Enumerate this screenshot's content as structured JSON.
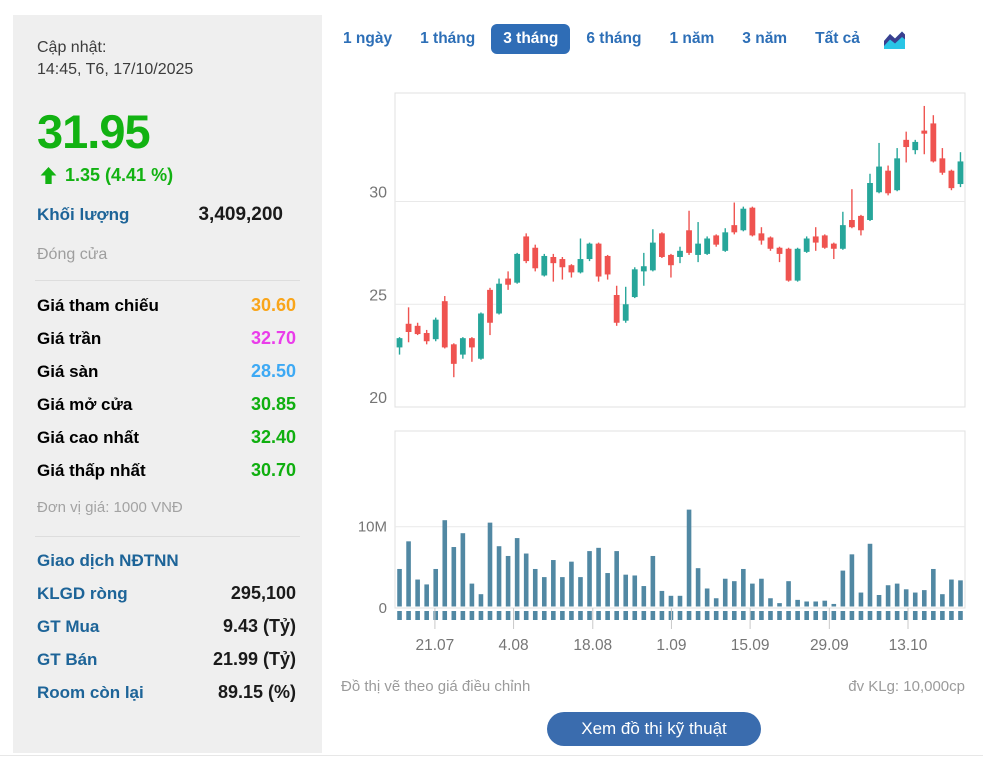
{
  "sidebar": {
    "updated_label": "Cập nhật:",
    "updated_value": "14:45, T6, 17/10/2025",
    "price": "31.95",
    "price_style": "color:#12b212",
    "change": "1.35 (4.41 %)",
    "change_style": "color:#12b212",
    "volume_label": "Khối lượng",
    "volume_value": "3,409,200",
    "session_status": "Đóng cửa",
    "price_rows": [
      {
        "label": "Giá tham chiếu",
        "value": "30.60",
        "style": "color:#f9a51a"
      },
      {
        "label": "Giá trần",
        "value": "32.70",
        "style": "color:#ea3cea"
      },
      {
        "label": "Giá sàn",
        "value": "28.50",
        "style": "color:#3da9f4"
      },
      {
        "label": "Giá mở cửa",
        "value": "30.85",
        "style": "color:#0faf0f"
      },
      {
        "label": "Giá cao nhất",
        "value": "32.40",
        "style": "color:#0faf0f"
      },
      {
        "label": "Giá thấp nhất",
        "value": "30.70",
        "style": "color:#0faf0f"
      }
    ],
    "unit_note": "Đơn vị giá: 1000 VNĐ",
    "foreign_header": "Giao dịch NĐTNN",
    "foreign_rows": [
      {
        "label": "KLGD ròng",
        "value": "295,100"
      },
      {
        "label": "GT Mua",
        "value": "9.43 (Tỷ)"
      },
      {
        "label": "GT Bán",
        "value": "21.99 (Tỷ)"
      },
      {
        "label": "Room còn lại",
        "value": "89.15 (%)"
      }
    ]
  },
  "tabs": {
    "items": [
      {
        "label": "1 ngày",
        "active": false
      },
      {
        "label": "1 tháng",
        "active": false
      },
      {
        "label": "3 tháng",
        "active": true
      },
      {
        "label": "6 tháng",
        "active": false
      },
      {
        "label": "1 năm",
        "active": false
      },
      {
        "label": "3 năm",
        "active": false
      },
      {
        "label": "Tất cả",
        "active": false
      }
    ],
    "active": "3 tháng"
  },
  "footer": {
    "left_note": "Đồ thị vẽ theo giá điều chỉnh",
    "right_note": "đv KLg: 10,000cp",
    "button_label": "Xem đồ thị kỹ thuật"
  },
  "colors": {
    "up": "#26a69a",
    "down": "#ef5350",
    "volume_bar": "#5188a3",
    "grid": "#e9e9e9",
    "plot_border": "#e0e0e0",
    "axis_text": "#757575",
    "accent_blue": "#2d6fb7",
    "price_green": "#12b212",
    "sidebar_label_blue": "#1d6498"
  },
  "chart_data": {
    "type": "candlestick+volume",
    "title": "",
    "price_axis": {
      "min": 20,
      "max": 35.28,
      "tick_labels": [
        "30",
        "25",
        "20"
      ],
      "tick_values": [
        30,
        25,
        20
      ],
      "grid": true
    },
    "volume_axis": {
      "max_millions": 21.8,
      "tick_labels": [
        "10M",
        "0"
      ],
      "tick_values_m": [
        10,
        0
      ]
    },
    "x_ticks": {
      "labels": [
        "21.07",
        "4.08",
        "18.08",
        "1.09",
        "15.09",
        "29.09",
        "13.10"
      ],
      "fracs": [
        0.07,
        0.208,
        0.347,
        0.485,
        0.623,
        0.762,
        0.9
      ]
    },
    "candles_ohlc": [
      [
        22.9,
        23.4,
        22.55,
        23.35
      ],
      [
        24.05,
        24.85,
        23.15,
        23.65
      ],
      [
        23.95,
        24.1,
        23.5,
        23.55
      ],
      [
        23.6,
        23.75,
        23.05,
        23.2
      ],
      [
        23.3,
        24.35,
        23.2,
        24.25
      ],
      [
        25.15,
        25.4,
        22.85,
        22.9
      ],
      [
        23.05,
        23.1,
        21.45,
        22.1
      ],
      [
        22.55,
        23.4,
        22.35,
        23.35
      ],
      [
        23.35,
        23.4,
        22.2,
        22.9
      ],
      [
        22.35,
        24.6,
        22.3,
        24.55
      ],
      [
        25.7,
        25.8,
        23.5,
        24.1
      ],
      [
        24.55,
        26.25,
        24.5,
        26.0
      ],
      [
        26.25,
        26.6,
        25.7,
        25.95
      ],
      [
        26.05,
        27.5,
        26.0,
        27.45
      ],
      [
        28.3,
        28.45,
        27.0,
        27.1
      ],
      [
        27.75,
        27.9,
        26.6,
        26.75
      ],
      [
        26.4,
        27.45,
        26.35,
        27.35
      ],
      [
        27.3,
        27.45,
        26.1,
        27.0
      ],
      [
        27.2,
        27.3,
        26.2,
        26.8
      ],
      [
        26.9,
        26.95,
        26.3,
        26.55
      ],
      [
        26.55,
        28.2,
        26.5,
        27.2
      ],
      [
        27.2,
        28.0,
        27.1,
        27.95
      ],
      [
        27.95,
        28.0,
        26.1,
        26.35
      ],
      [
        27.35,
        27.4,
        26.2,
        26.45
      ],
      [
        25.45,
        25.9,
        23.95,
        24.1
      ],
      [
        24.2,
        25.85,
        24.1,
        25.0
      ],
      [
        25.35,
        26.8,
        25.3,
        26.7
      ],
      [
        26.6,
        27.5,
        25.9,
        26.85
      ],
      [
        26.65,
        28.65,
        26.6,
        28.0
      ],
      [
        28.45,
        28.5,
        27.25,
        27.3
      ],
      [
        27.4,
        27.45,
        26.3,
        26.9
      ],
      [
        27.3,
        27.8,
        27.0,
        27.6
      ],
      [
        28.6,
        29.55,
        27.4,
        27.5
      ],
      [
        27.4,
        29.0,
        27.05,
        27.95
      ],
      [
        27.45,
        28.3,
        27.4,
        28.2
      ],
      [
        28.35,
        28.4,
        27.8,
        27.9
      ],
      [
        27.6,
        28.7,
        27.55,
        28.5
      ],
      [
        28.85,
        29.95,
        28.4,
        28.5
      ],
      [
        28.6,
        29.75,
        28.55,
        29.65
      ],
      [
        29.7,
        29.75,
        28.3,
        28.35
      ],
      [
        28.45,
        28.75,
        27.9,
        28.1
      ],
      [
        28.25,
        28.3,
        27.6,
        27.7
      ],
      [
        27.75,
        27.8,
        27.05,
        27.45
      ],
      [
        27.7,
        27.75,
        26.1,
        26.15
      ],
      [
        26.15,
        27.75,
        26.1,
        27.7
      ],
      [
        27.55,
        28.3,
        27.5,
        28.2
      ],
      [
        28.3,
        28.75,
        27.6,
        28.0
      ],
      [
        28.35,
        28.4,
        27.7,
        27.75
      ],
      [
        27.95,
        28.0,
        27.2,
        27.7
      ],
      [
        27.7,
        29.5,
        27.65,
        28.85
      ],
      [
        29.1,
        30.6,
        28.7,
        28.75
      ],
      [
        29.3,
        29.35,
        28.35,
        28.6
      ],
      [
        29.1,
        31.35,
        29.05,
        30.9
      ],
      [
        30.45,
        32.85,
        30.4,
        31.7
      ],
      [
        31.5,
        31.75,
        30.3,
        30.4
      ],
      [
        30.55,
        32.6,
        30.5,
        32.1
      ],
      [
        33.0,
        33.4,
        31.9,
        32.65
      ],
      [
        32.5,
        33.0,
        32.3,
        32.9
      ],
      [
        33.45,
        34.65,
        32.3,
        33.3
      ],
      [
        33.8,
        34.2,
        31.9,
        31.95
      ],
      [
        32.1,
        32.6,
        31.3,
        31.4
      ],
      [
        31.5,
        31.55,
        30.55,
        30.65
      ],
      [
        30.85,
        32.4,
        30.7,
        31.95
      ]
    ],
    "volumes_millions": [
      4.8,
      8.2,
      3.5,
      2.9,
      4.8,
      10.8,
      7.5,
      9.2,
      3.0,
      1.7,
      10.5,
      7.6,
      6.4,
      8.6,
      6.7,
      4.8,
      3.8,
      5.9,
      3.8,
      5.7,
      3.8,
      7.0,
      7.4,
      4.3,
      7.0,
      4.1,
      4.0,
      2.7,
      6.4,
      2.1,
      1.5,
      1.5,
      12.1,
      4.9,
      2.4,
      1.2,
      3.6,
      3.3,
      4.8,
      3.0,
      3.6,
      1.2,
      0.6,
      3.3,
      1.0,
      0.8,
      0.8,
      0.9,
      0.5,
      4.6,
      6.6,
      1.9,
      7.9,
      1.6,
      2.8,
      3.0,
      2.3,
      1.9,
      2.2,
      4.8,
      1.7,
      3.5,
      3.4
    ]
  }
}
